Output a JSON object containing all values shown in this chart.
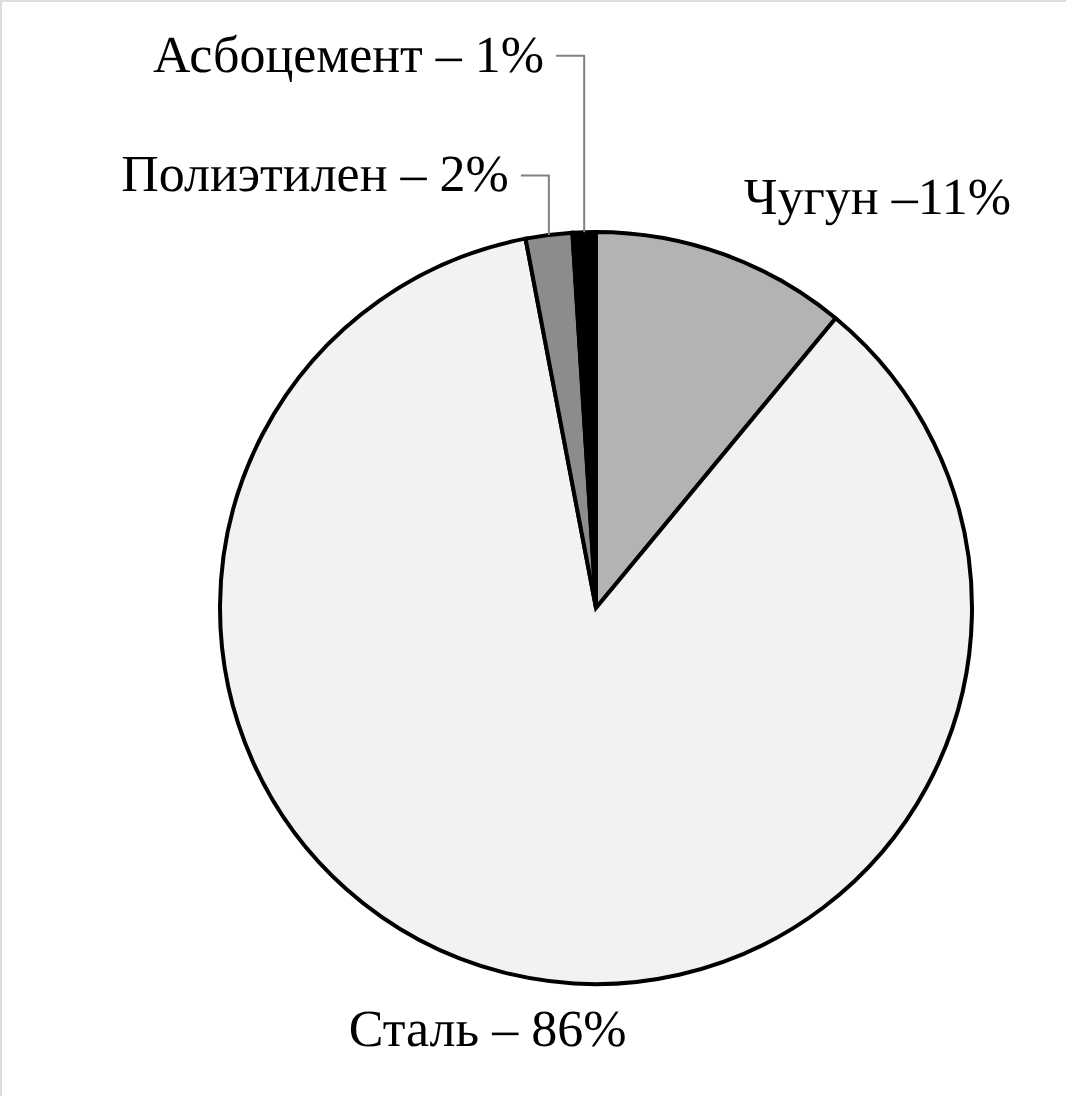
{
  "chart_data": {
    "type": "pie",
    "categories": [
      "Чугун –11%",
      "Сталь – 86%",
      "Полиэтилен – 2%",
      "Асбоцемент – 1%"
    ],
    "values": [
      11,
      86,
      2,
      1
    ],
    "colors": [
      "#b3b3b3",
      "#f2f2f2",
      "#8c8c8c",
      "#000000"
    ]
  }
}
